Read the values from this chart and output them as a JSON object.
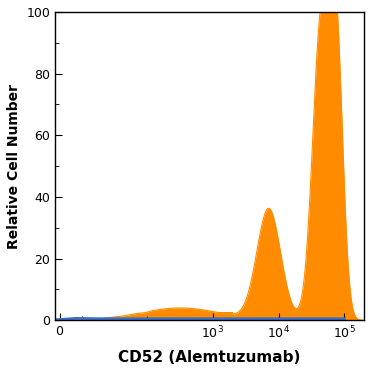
{
  "title": "CD52 (Alemtuzumab)",
  "ylabel": "Relative Cell Number",
  "ylim": [
    0,
    100
  ],
  "yticks": [
    0,
    20,
    40,
    60,
    80,
    100
  ],
  "blue_color": "#3A6EC8",
  "orange_color": "#FF8C00",
  "background_color": "#ffffff",
  "title_fontsize": 11,
  "label_fontsize": 10,
  "tick_fontsize": 9
}
